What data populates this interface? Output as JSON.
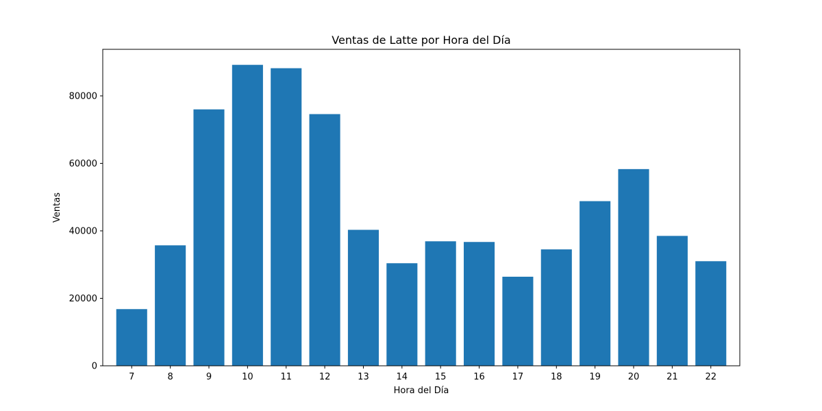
{
  "chart_data": {
    "type": "bar",
    "title": "Ventas de Latte por Hora del Día",
    "xlabel": "Hora del Día",
    "ylabel": "Ventas",
    "categories": [
      "7",
      "8",
      "9",
      "10",
      "11",
      "12",
      "13",
      "14",
      "15",
      "16",
      "17",
      "18",
      "19",
      "20",
      "21",
      "22"
    ],
    "values": [
      16800,
      35700,
      76000,
      89200,
      88200,
      74600,
      40300,
      30400,
      36900,
      36700,
      26400,
      34500,
      48800,
      58300,
      38500,
      31000
    ],
    "ylim": [
      0,
      93800
    ],
    "yticks": [
      0,
      20000,
      40000,
      60000,
      80000
    ],
    "ytick_labels": [
      "0",
      "20000",
      "40000",
      "60000",
      "80000"
    ],
    "grid": false,
    "legend": "none",
    "bar_color": "#1f77b4"
  }
}
